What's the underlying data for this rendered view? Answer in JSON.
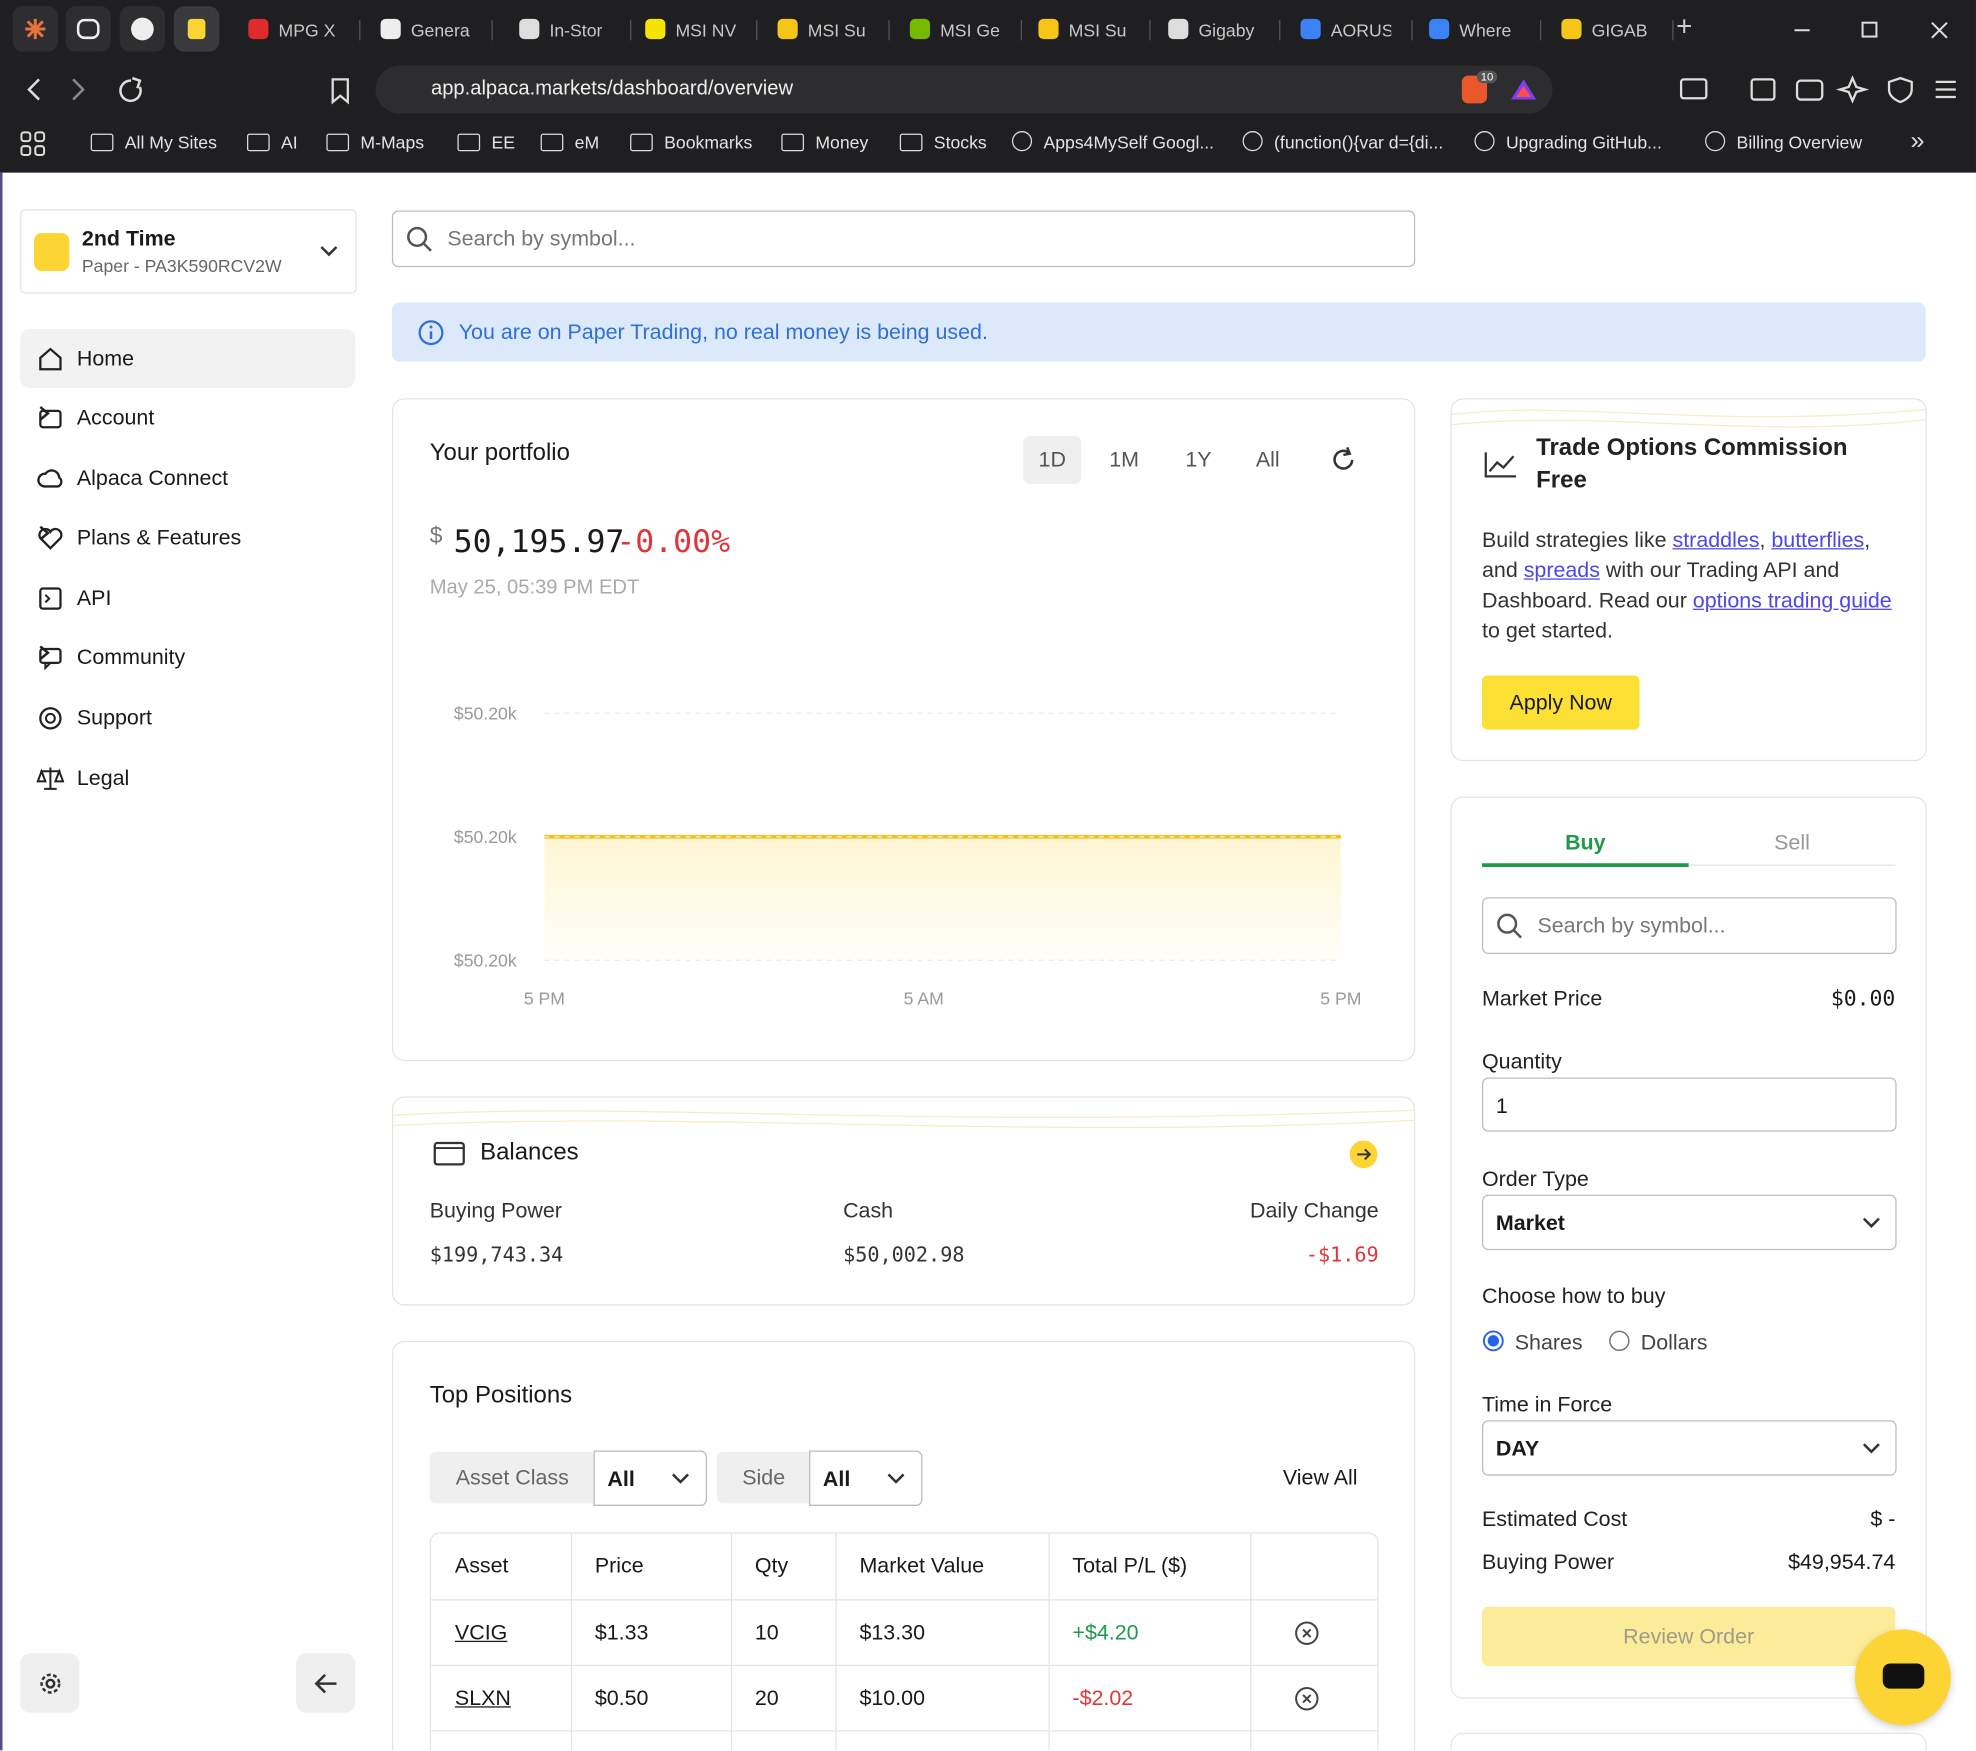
{
  "browser": {
    "tabs": [
      "MPG X",
      "Genera",
      "In-Stor",
      "MSI NV",
      "MSI Su",
      "MSI Ge",
      "MSI Su",
      "Gigaby",
      "AORUS",
      "Where",
      "GIGAB"
    ],
    "url": "app.alpaca.markets/dashboard/overview",
    "badge": 10,
    "bookmarks": [
      "All My Sites",
      "AI",
      "M-Maps",
      "EE",
      "eM",
      "Bookmarks",
      "Money",
      "Stocks",
      "Apps4MySelf Googl...",
      "(function(){var d={di...",
      "Upgrading GitHub...",
      "Billing Overview"
    ]
  },
  "account": {
    "name": "2nd Time",
    "id": "Paper - PA3K590RCV2W"
  },
  "nav": [
    "Home",
    "Account",
    "Alpaca Connect",
    "Plans & Features",
    "API",
    "Community",
    "Support",
    "Legal"
  ],
  "search_placeholder": "Search by symbol...",
  "notice": "You are on Paper Trading, no real money is being used.",
  "portfolio": {
    "title": "Your portfolio",
    "ranges": [
      "1D",
      "1M",
      "1Y",
      "All"
    ],
    "currency": "$",
    "value": "50,195.97",
    "change": "-0.00%",
    "timestamp": "May 25, 05:39 PM EDT",
    "y_labels": [
      "$50.20k",
      "$50.20k",
      "$50.20k"
    ],
    "x_labels": [
      "5 PM",
      "5 AM",
      "5 PM"
    ]
  },
  "balances": {
    "title": "Balances",
    "items": [
      {
        "label": "Buying Power",
        "value": "$199,743.34"
      },
      {
        "label": "Cash",
        "value": "$50,002.98"
      },
      {
        "label": "Daily Change",
        "value": "-$1.69"
      }
    ]
  },
  "positions": {
    "title": "Top Positions",
    "filters": [
      {
        "label": "Asset Class",
        "value": "All"
      },
      {
        "label": "Side",
        "value": "All"
      }
    ],
    "view_all": "View All",
    "columns": [
      "Asset",
      "Price",
      "Qty",
      "Market Value",
      "Total P/L ($)"
    ],
    "rows": [
      [
        "VCIG",
        "$1.33",
        10,
        "$13.30",
        "+$4.20"
      ],
      [
        "SLXN",
        "$0.50",
        20,
        "$10.00",
        "-$2.02"
      ]
    ]
  },
  "promo": {
    "title": "Trade Options Commission Free",
    "body": [
      "Build strategies like ",
      "straddles",
      ", ",
      "butterflies",
      ", and ",
      "spreads",
      " with our Trading API and Dashboard. Read our ",
      "options trading guide",
      " to get started."
    ],
    "button": "Apply Now"
  },
  "order": {
    "tabs": [
      "Buy",
      "Sell"
    ],
    "search_placeholder": "Search by symbol...",
    "market_price_label": "Market Price",
    "market_price": "$0.00",
    "quantity_label": "Quantity",
    "quantity": 1,
    "order_type_label": "Order Type",
    "order_type": "Market",
    "how_label": "Choose how to buy",
    "how_options": [
      "Shares",
      "Dollars"
    ],
    "tif_label": "Time in Force",
    "tif": "DAY",
    "est_cost_label": "Estimated Cost",
    "est_cost": "$ -",
    "bp_label": "Buying Power",
    "bp": "$49,954.74",
    "review": "Review Order"
  }
}
